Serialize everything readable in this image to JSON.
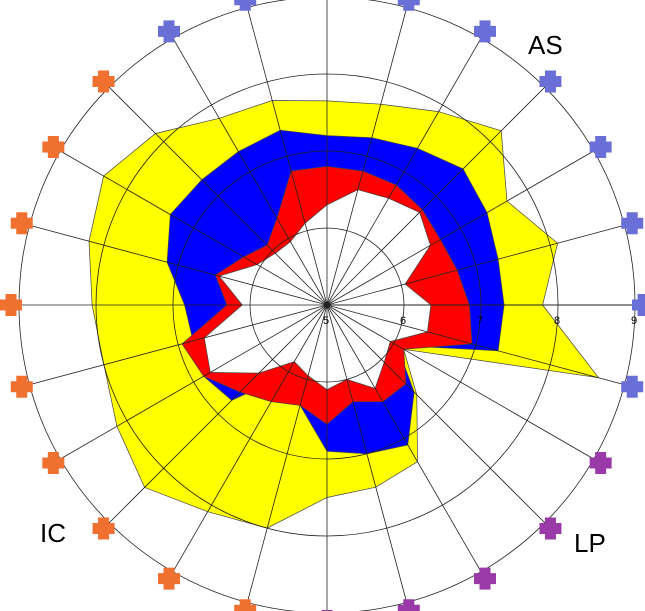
{
  "chart_data": {
    "type": "radar",
    "n_axes": 24,
    "r_range": [
      5,
      9
    ],
    "ticks": [
      "5",
      "6",
      "7",
      "8",
      "9"
    ],
    "grid": true,
    "group_labels": [
      "AS",
      "IC",
      "LP"
    ],
    "marker_colors": {
      "AS": "#6a6fd8",
      "IC": "#f07030",
      "LP": "#9a3aa8"
    },
    "marker_groups": [
      "AS",
      "AS",
      "AS",
      "AS",
      "AS",
      "AS",
      "AS",
      "AS",
      "LP",
      "LP",
      "LP",
      "LP",
      "LP",
      "IC",
      "IC",
      "IC",
      "IC",
      "IC",
      "IC",
      "IC",
      "IC",
      "IC",
      "AS",
      "AS"
    ],
    "series": [
      {
        "color": "#ffff00",
        "values": [
          7.65,
          7.7,
          7.9,
          8.2,
          7.7,
          8.1,
          7.8,
          8.65,
          6.15,
          6.65,
          7.35,
          7.45,
          7.5,
          8.0,
          8.1,
          8.35,
          8.15,
          8.0,
          8.05,
          8.2,
          8.35,
          8.15,
          7.8,
          7.75
        ]
      },
      {
        "color": "#0000ff",
        "values": [
          7.2,
          7.25,
          7.35,
          7.5,
          7.4,
          7.3,
          7.3,
          7.3,
          6.05,
          6.6,
          7.1,
          7.0,
          6.9,
          6.35,
          6.05,
          6.75,
          6.85,
          6.8,
          6.85,
          7.15,
          7.35,
          7.3,
          7.3,
          7.35
        ]
      },
      {
        "color": "#ff0000",
        "values": [
          6.8,
          6.8,
          6.8,
          6.75,
          6.7,
          6.75,
          6.85,
          6.95,
          6.15,
          6.45,
          6.45,
          6.3,
          6.55,
          6.35,
          6.45,
          6.6,
          6.85,
          6.95,
          6.3,
          6.5,
          6.25,
          6.1,
          6.3,
          6.8
        ]
      },
      {
        "color": "#ffffff",
        "values": [
          6.3,
          6.55,
          6.6,
          6.7,
          6.55,
          6.05,
          6.35,
          6.35,
          5.95,
          6.05,
          6.25,
          6.0,
          6.1,
          5.95,
          5.85,
          6.25,
          6.75,
          6.65,
          6.1,
          6.45,
          6.05,
          5.95,
          5.95,
          6.1
        ]
      }
    ]
  }
}
